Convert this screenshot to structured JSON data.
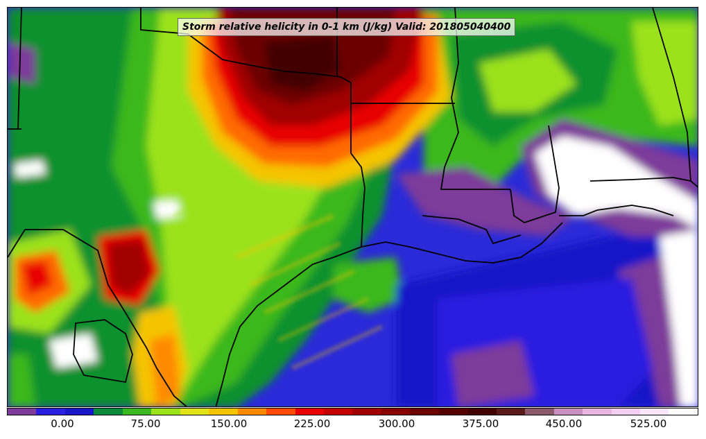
{
  "map": {
    "title": "Storm relative helicity in 0-1 km (J/kg) Valid: 201805040400",
    "variable": "Storm relative helicity in 0-1 km",
    "units": "J/kg",
    "valid_time": "201805040400"
  },
  "colorbar": {
    "colors": [
      "#7d3b9a",
      "#2a1fe0",
      "#1717c8",
      "#0a8a3a",
      "#3bb81f",
      "#9be21a",
      "#e2e21a",
      "#f5c400",
      "#ff8a00",
      "#ff4a00",
      "#e80000",
      "#c20000",
      "#a00000",
      "#860000",
      "#6c0000",
      "#560000",
      "#430000",
      "#5a1a1a",
      "#8a5a6a",
      "#c98fc0",
      "#e8b4e0",
      "#f2cff0",
      "#fae6fa",
      "#ffffff"
    ],
    "tick_labels": [
      "0.00",
      "75.00",
      "150.00",
      "225.00",
      "300.00",
      "375.00",
      "450.00",
      "525.00"
    ]
  }
}
